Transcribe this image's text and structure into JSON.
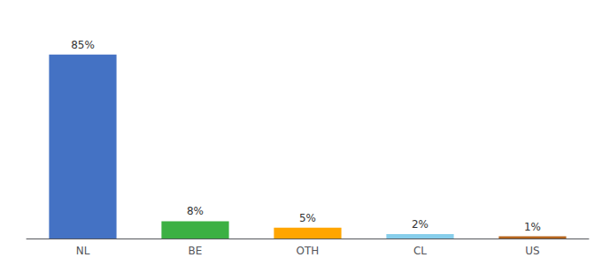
{
  "chart_data": {
    "type": "bar",
    "categories": [
      "NL",
      "BE",
      "OTH",
      "CL",
      "US"
    ],
    "values": [
      85,
      8,
      5,
      2,
      1
    ],
    "value_labels": [
      "85%",
      "8%",
      "5%",
      "2%",
      "1%"
    ],
    "colors": [
      "#4472C4",
      "#3CB043",
      "#FFA500",
      "#87CEEB",
      "#B5651D"
    ],
    "ylim": [
      0,
      100
    ],
    "grid": false,
    "data_labels": true,
    "tick_labels": "x"
  }
}
